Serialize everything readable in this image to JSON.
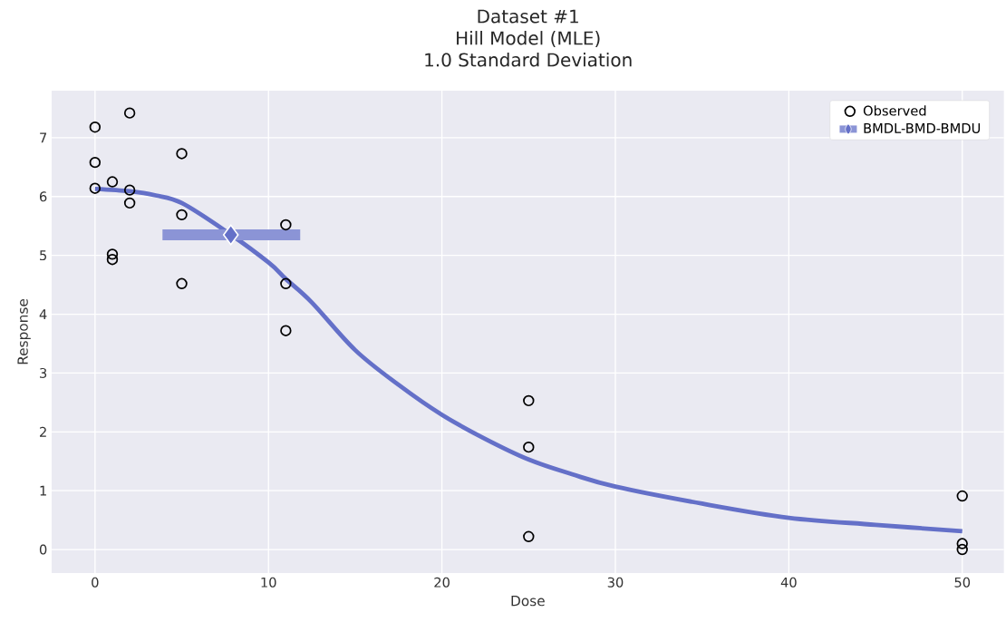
{
  "chart_data": {
    "type": "scatter",
    "title": "Dataset #1",
    "subtitle": "Hill Model (MLE)",
    "annotations": [
      "1.0 Standard Deviation"
    ],
    "xlabel": "Dose",
    "ylabel": "Response",
    "xlim": [
      -2.5,
      52.4
    ],
    "ylim": [
      -0.4,
      7.8
    ],
    "xticks": [
      0,
      10,
      20,
      30,
      40,
      50
    ],
    "yticks": [
      0,
      1,
      2,
      3,
      4,
      5,
      6,
      7
    ],
    "grid": true,
    "legend": "top right",
    "series": [
      {
        "name": "Observed",
        "type": "scatter",
        "color": "#000000",
        "marker": "circle",
        "x": [
          0,
          0,
          0,
          1,
          1,
          1,
          2,
          2,
          2,
          5,
          5,
          5,
          11,
          11,
          11,
          25,
          25,
          25,
          50,
          50,
          50
        ],
        "values": [
          7.18,
          6.58,
          6.14,
          6.25,
          5.02,
          4.93,
          7.42,
          6.11,
          5.89,
          6.73,
          5.69,
          4.52,
          5.52,
          4.52,
          3.72,
          2.53,
          1.74,
          0.22,
          0.91,
          0.1,
          0.0
        ]
      },
      {
        "type": "line",
        "color": "#6470c8",
        "marker": "none",
        "line_style": "solid",
        "x": [
          0,
          2,
          3.5,
          5,
          7.5,
          10,
          11,
          12.5,
          15,
          17.5,
          20,
          22.5,
          25,
          27.5,
          30,
          35,
          40,
          45,
          50
        ],
        "values": [
          6.13,
          6.09,
          6.02,
          5.89,
          5.42,
          4.88,
          4.6,
          4.2,
          3.39,
          2.8,
          2.29,
          1.88,
          1.53,
          1.28,
          1.07,
          0.78,
          0.54,
          0.42,
          0.31
        ]
      },
      {
        "name": "BMDL-BMD-BMDU",
        "type": "scatter",
        "color": "#6470c8",
        "marker": "diamond",
        "x": [
          7.83
        ],
        "values": [
          5.35
        ],
        "xerrors": [
          [
            3.89,
            11.83
          ]
        ]
      }
    ]
  }
}
